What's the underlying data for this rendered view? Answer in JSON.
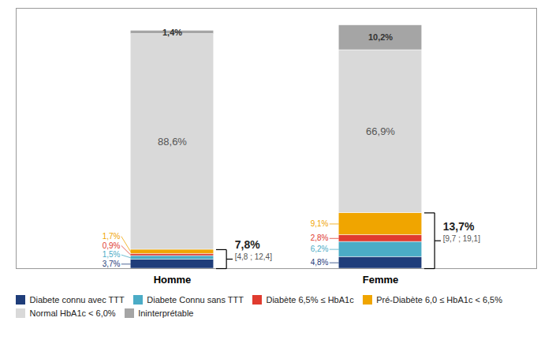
{
  "chart_data": {
    "type": "bar",
    "stacked": true,
    "categories": [
      "Homme",
      "Femme"
    ],
    "series": [
      {
        "name": "Diabete connu avec TTT",
        "color": "#1f3d7a",
        "values": [
          3.7,
          4.8
        ],
        "value_labels": [
          "3,7%",
          "4,8%"
        ]
      },
      {
        "name": "Diabete Connu sans TTT",
        "color": "#4bacc6",
        "values": [
          1.5,
          6.2
        ],
        "value_labels": [
          "1,5%",
          "6,2%"
        ]
      },
      {
        "name": "Diabète 6,5% ≤ HbA1c",
        "color": "#e03b2f",
        "values": [
          0.9,
          2.8
        ],
        "value_labels": [
          "0,9%",
          "2,8%"
        ]
      },
      {
        "name": "Pré-Diabète 6,0 ≤ HbA1c < 6,5%",
        "color": "#f0a500",
        "values": [
          1.7,
          9.1
        ],
        "value_labels": [
          "1,7%",
          "9,1%"
        ]
      },
      {
        "name": "Normal HbA1c < 6,0%",
        "color": "#d9d9d9",
        "values": [
          88.6,
          66.9
        ],
        "value_labels": [
          "88,6%",
          "66,9%"
        ]
      },
      {
        "name": "Ininterprétable",
        "color": "#a5a5a5",
        "values": [
          1.4,
          10.2
        ],
        "value_labels": [
          "1,4%",
          "10,2%"
        ]
      }
    ],
    "annotations": [
      {
        "category": "Homme",
        "label": "7,8%",
        "interval": "[4,8 ; 12,4]"
      },
      {
        "category": "Femme",
        "label": "13,7%",
        "interval": "[9,7 ; 19,1]"
      }
    ],
    "ylim": [
      0,
      107
    ],
    "tick_labels": "x",
    "grid": false,
    "legend": "bottom",
    "data_labels": true
  }
}
